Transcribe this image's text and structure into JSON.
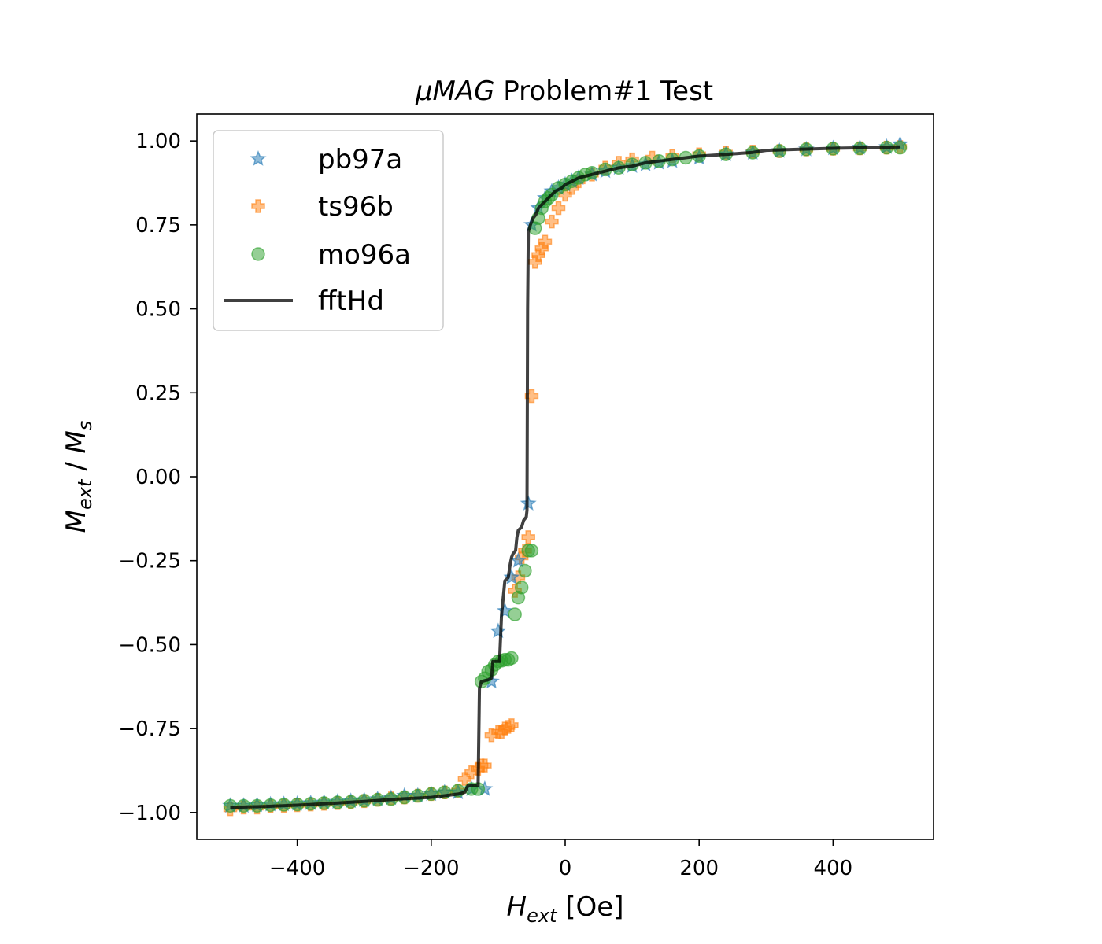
{
  "chart_data": {
    "type": "scatter",
    "title_prefix": "μMAG",
    "title_suffix": " Problem#1 Test",
    "xlabel_sym": "H",
    "xlabel_sub": "ext",
    "xlabel_unit": " [Oe]",
    "ylabel_sym1": "M",
    "ylabel_sub1": "ext",
    "ylabel_mid": " / ",
    "ylabel_sym2": "M",
    "ylabel_sub2": "s",
    "xlim": [
      -550,
      550
    ],
    "ylim": [
      -1.08,
      1.08
    ],
    "x_ticks": [
      -400,
      -200,
      0,
      200,
      400
    ],
    "x_tick_labels": [
      "−400",
      "−200",
      "0",
      "200",
      "400"
    ],
    "y_ticks": [
      1.0,
      0.75,
      0.5,
      0.25,
      0.0,
      -0.25,
      -0.5,
      -0.75,
      -1.0
    ],
    "y_tick_labels": [
      "1.00",
      "0.75",
      "0.50",
      "0.25",
      "0.00",
      "−0.25",
      "−0.50",
      "−0.75",
      "−1.00"
    ],
    "grid": false,
    "legend_position": "upper-left",
    "colors": {
      "pb97a": "#1f77b4",
      "ts96b": "#ff7f0e",
      "mo96a": "#2ca02c",
      "fftHd": "#000000"
    },
    "series": [
      {
        "name": "pb97a",
        "marker": "star",
        "x": [
          -500,
          -480,
          -460,
          -440,
          -420,
          -400,
          -380,
          -360,
          -340,
          -320,
          -300,
          -280,
          -260,
          -240,
          -220,
          -200,
          -180,
          -160,
          -140,
          -120,
          -110,
          -100,
          -90,
          -80,
          -70,
          -55,
          -50,
          -40,
          -30,
          -20,
          -10,
          0,
          10,
          20,
          40,
          60,
          80,
          100,
          120,
          140,
          160,
          200,
          240,
          280,
          320,
          360,
          400,
          440,
          480,
          500
        ],
        "y": [
          -0.98,
          -0.98,
          -0.978,
          -0.976,
          -0.975,
          -0.974,
          -0.972,
          -0.97,
          -0.968,
          -0.966,
          -0.963,
          -0.96,
          -0.957,
          -0.95,
          -0.95,
          -0.945,
          -0.94,
          -0.94,
          -0.93,
          -0.93,
          -0.61,
          -0.46,
          -0.4,
          -0.3,
          -0.25,
          -0.08,
          0.75,
          0.8,
          0.83,
          0.85,
          0.86,
          0.87,
          0.88,
          0.89,
          0.9,
          0.91,
          0.92,
          0.925,
          0.93,
          0.935,
          0.94,
          0.95,
          0.96,
          0.965,
          0.97,
          0.975,
          0.978,
          0.98,
          0.982,
          0.99
        ]
      },
      {
        "name": "ts96b",
        "marker": "plus",
        "x": [
          -500,
          -480,
          -460,
          -440,
          -420,
          -400,
          -380,
          -360,
          -340,
          -320,
          -300,
          -280,
          -260,
          -240,
          -220,
          -200,
          -180,
          -160,
          -150,
          -140,
          -130,
          -125,
          -120,
          -110,
          -100,
          -95,
          -90,
          -85,
          -80,
          -75,
          -70,
          -65,
          -60,
          -55,
          -50,
          -45,
          -40,
          -35,
          -30,
          -20,
          -10,
          0,
          10,
          20,
          40,
          60,
          80,
          100,
          130,
          160,
          200,
          240,
          280,
          320,
          360,
          400,
          440,
          480,
          500
        ],
        "y": [
          -0.99,
          -0.985,
          -0.985,
          -0.982,
          -0.98,
          -0.978,
          -0.976,
          -0.974,
          -0.972,
          -0.97,
          -0.966,
          -0.962,
          -0.958,
          -0.955,
          -0.95,
          -0.945,
          -0.94,
          -0.935,
          -0.9,
          -0.88,
          -0.87,
          -0.86,
          -0.86,
          -0.77,
          -0.76,
          -0.76,
          -0.75,
          -0.745,
          -0.74,
          -0.34,
          -0.3,
          -0.24,
          -0.22,
          -0.18,
          0.24,
          0.64,
          0.66,
          0.68,
          0.7,
          0.76,
          0.8,
          0.84,
          0.86,
          0.88,
          0.9,
          0.92,
          0.935,
          0.945,
          0.95,
          0.955,
          0.96,
          0.965,
          0.968,
          0.97,
          0.975,
          0.977,
          0.978,
          0.98,
          0.982
        ]
      },
      {
        "name": "mo96a",
        "marker": "circle",
        "x": [
          -500,
          -480,
          -460,
          -440,
          -420,
          -400,
          -380,
          -360,
          -340,
          -320,
          -300,
          -280,
          -260,
          -240,
          -220,
          -200,
          -180,
          -160,
          -140,
          -130,
          -125,
          -120,
          -115,
          -110,
          -105,
          -100,
          -95,
          -90,
          -85,
          -80,
          -75,
          -70,
          -65,
          -60,
          -55,
          -50,
          -45,
          -40,
          -35,
          -30,
          -25,
          -20,
          -10,
          0,
          10,
          20,
          30,
          40,
          60,
          80,
          100,
          120,
          140,
          160,
          180,
          200,
          240,
          280,
          320,
          360,
          400,
          440,
          480,
          500
        ],
        "y": [
          -0.98,
          -0.98,
          -0.98,
          -0.978,
          -0.977,
          -0.976,
          -0.974,
          -0.972,
          -0.97,
          -0.968,
          -0.965,
          -0.962,
          -0.96,
          -0.955,
          -0.95,
          -0.945,
          -0.94,
          -0.935,
          -0.93,
          -0.93,
          -0.61,
          -0.6,
          -0.58,
          -0.575,
          -0.56,
          -0.55,
          -0.548,
          -0.545,
          -0.545,
          -0.54,
          -0.41,
          -0.36,
          -0.33,
          -0.28,
          -0.22,
          -0.22,
          0.74,
          0.77,
          0.8,
          0.82,
          0.83,
          0.84,
          0.86,
          0.87,
          0.88,
          0.89,
          0.9,
          0.905,
          0.915,
          0.92,
          0.93,
          0.935,
          0.94,
          0.945,
          0.95,
          0.955,
          0.96,
          0.965,
          0.97,
          0.975,
          0.977,
          0.978,
          0.98,
          0.98
        ]
      },
      {
        "name": "fftHd",
        "marker": "line",
        "x": [
          -500,
          -450,
          -400,
          -350,
          -300,
          -250,
          -200,
          -160,
          -150,
          -145,
          -140,
          -130,
          -128,
          -125,
          -115,
          -110,
          -108,
          -105,
          -98,
          -95,
          -92,
          -90,
          -85,
          -82,
          -80,
          -78,
          -74,
          -72,
          -70,
          -65,
          -62,
          -58,
          -57,
          -56,
          -55,
          -52,
          -48,
          -44,
          -40,
          -35,
          -30,
          -25,
          -20,
          -15,
          -10,
          -5,
          0,
          10,
          20,
          30,
          40,
          50,
          60,
          80,
          100,
          120,
          140,
          160,
          180,
          200,
          240,
          280,
          300,
          350,
          400,
          450,
          500
        ],
        "y": [
          -0.985,
          -0.982,
          -0.978,
          -0.973,
          -0.967,
          -0.96,
          -0.955,
          -0.945,
          -0.94,
          -0.92,
          -0.92,
          -0.92,
          -0.63,
          -0.61,
          -0.605,
          -0.6,
          -0.55,
          -0.55,
          -0.55,
          -0.41,
          -0.35,
          -0.31,
          -0.3,
          -0.26,
          -0.24,
          -0.23,
          -0.22,
          -0.18,
          -0.16,
          -0.15,
          -0.13,
          -0.12,
          -0.1,
          0.5,
          0.73,
          0.75,
          0.77,
          0.78,
          0.8,
          0.81,
          0.82,
          0.83,
          0.84,
          0.85,
          0.855,
          0.86,
          0.87,
          0.88,
          0.89,
          0.895,
          0.9,
          0.905,
          0.91,
          0.92,
          0.925,
          0.935,
          0.94,
          0.945,
          0.95,
          0.955,
          0.96,
          0.966,
          0.972,
          0.975,
          0.978,
          0.98,
          0.982
        ]
      }
    ]
  }
}
